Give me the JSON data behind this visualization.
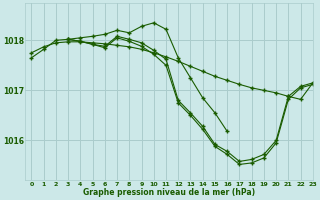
{
  "title": "Graphe pression niveau de la mer (hPa)",
  "bg_color": "#cce8e8",
  "grid_color": "#aacccc",
  "line_color": "#1a5c00",
  "xlim": [
    -0.5,
    23
  ],
  "ylim": [
    1015.2,
    1018.75
  ],
  "yticks": [
    1016,
    1017,
    1018
  ],
  "xticks": [
    0,
    1,
    2,
    3,
    4,
    5,
    6,
    7,
    8,
    9,
    10,
    11,
    12,
    13,
    14,
    15,
    16,
    17,
    18,
    19,
    20,
    21,
    22,
    23
  ],
  "series": [
    {
      "x": [
        0,
        1,
        2,
        3,
        4,
        5,
        6,
        7,
        8,
        9,
        10,
        11,
        12,
        13,
        14,
        15,
        16,
        17,
        18,
        19,
        20,
        21,
        22,
        23
      ],
      "y": [
        1017.75,
        1017.87,
        1017.95,
        1017.97,
        1017.97,
        1017.95,
        1017.93,
        1017.9,
        1017.87,
        1017.82,
        1017.75,
        1017.67,
        1017.58,
        1017.48,
        1017.38,
        1017.28,
        1017.2,
        1017.12,
        1017.05,
        1017.0,
        1016.95,
        1016.88,
        1016.82,
        1017.15
      ]
    },
    {
      "x": [
        0,
        1,
        2,
        3,
        4,
        5,
        6,
        7,
        8,
        9,
        10,
        11,
        12,
        13,
        14,
        15,
        16
      ],
      "y": [
        1017.65,
        1017.82,
        1018.0,
        1018.02,
        1018.05,
        1018.08,
        1018.12,
        1018.2,
        1018.15,
        1018.28,
        1018.35,
        1018.22,
        1017.65,
        1017.25,
        1016.85,
        1016.55,
        1016.18
      ]
    },
    {
      "x": [
        3,
        4,
        5,
        6,
        7,
        8,
        9,
        10,
        11,
        12,
        13,
        14,
        15,
        16,
        17,
        18,
        19,
        20,
        21,
        22,
        23
      ],
      "y": [
        1018.02,
        1017.98,
        1017.92,
        1017.88,
        1018.08,
        1018.02,
        1017.95,
        1017.8,
        1017.62,
        1016.8,
        1016.55,
        1016.28,
        1015.92,
        1015.78,
        1015.58,
        1015.62,
        1015.72,
        1016.0,
        1016.88,
        1017.08,
        1017.15
      ]
    },
    {
      "x": [
        3,
        4,
        5,
        6,
        7,
        8,
        9,
        10,
        11,
        12,
        13,
        14,
        15,
        16,
        17,
        18,
        19,
        20,
        21,
        22,
        23
      ],
      "y": [
        1018.02,
        1017.98,
        1017.92,
        1017.85,
        1018.05,
        1017.98,
        1017.88,
        1017.72,
        1017.5,
        1016.75,
        1016.5,
        1016.22,
        1015.88,
        1015.72,
        1015.52,
        1015.55,
        1015.65,
        1015.95,
        1016.82,
        1017.05,
        1017.12
      ]
    }
  ]
}
